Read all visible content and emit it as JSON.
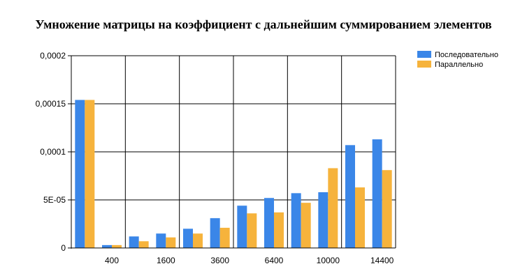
{
  "chart_data": {
    "type": "bar",
    "title": "Умножение матрицы на коэффициент с дальнейшим суммированием элементов",
    "xlabel": "",
    "ylabel": "",
    "categories": [
      "",
      "400",
      "",
      "1600",
      "",
      "3600",
      "",
      "6400",
      "",
      "10000",
      "",
      "14400"
    ],
    "series": [
      {
        "name": "Последовательно",
        "color": "#3a86e8",
        "values": [
          0.000154,
          3e-06,
          1.2e-05,
          1.5e-05,
          2e-05,
          3.1e-05,
          4.4e-05,
          5.2e-05,
          5.7e-05,
          5.8e-05,
          0.000107,
          0.000113
        ]
      },
      {
        "name": "Параллельно",
        "color": "#f6b33c",
        "values": [
          0.000154,
          3e-06,
          7e-06,
          1.1e-05,
          1.5e-05,
          2.1e-05,
          3.6e-05,
          3.7e-05,
          4.7e-05,
          8.3e-05,
          6.3e-05,
          8.1e-05
        ]
      }
    ],
    "ylim": [
      0,
      0.0002
    ],
    "y_ticks": [
      {
        "value": 0,
        "label": "0"
      },
      {
        "value": 5e-05,
        "label": "5E-05"
      },
      {
        "value": 0.0001,
        "label": "0,0001"
      },
      {
        "value": 0.00015,
        "label": "0,00015"
      },
      {
        "value": 0.0002,
        "label": "0,0002"
      }
    ],
    "grid": true,
    "legend": "top-right"
  }
}
